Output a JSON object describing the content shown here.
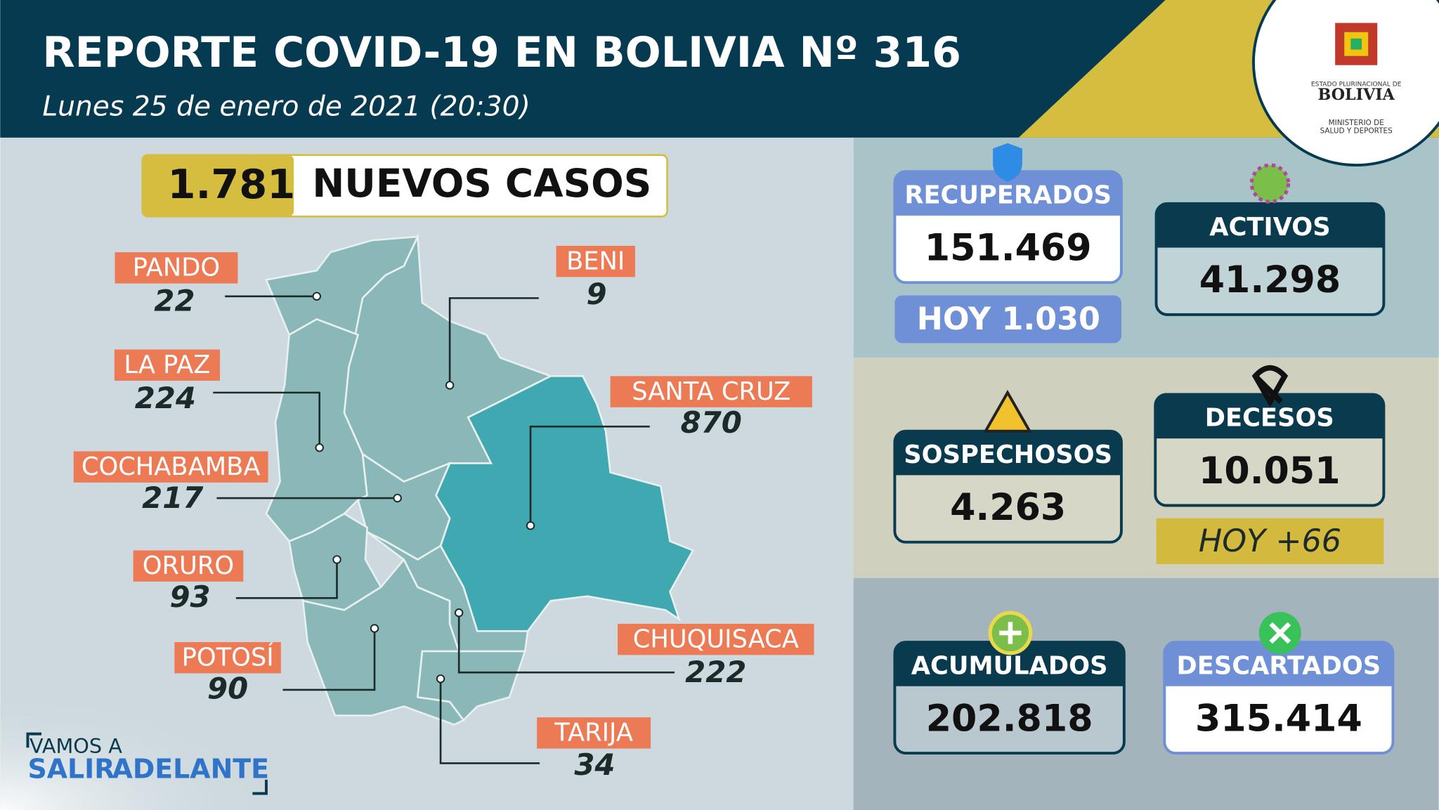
{
  "header": {
    "title": "REPORTE COVID-19 EN BOLIVIA Nº 316",
    "subtitle": "Lunes 25 de enero de 2021 (20:30)"
  },
  "logo": {
    "top": "ESTADO PLURINACIONAL DE",
    "name": "BOLIVIA",
    "ministry_1": "MINISTERIO DE",
    "ministry_2": "SALUD Y DEPORTES"
  },
  "new_cases": {
    "value": "1.781",
    "label": "NUEVOS CASOS"
  },
  "departments": [
    {
      "name": "PANDO",
      "cases": "22"
    },
    {
      "name": "BENI",
      "cases": "9"
    },
    {
      "name": "LA PAZ",
      "cases": "224"
    },
    {
      "name": "SANTA CRUZ",
      "cases": "870"
    },
    {
      "name": "COCHABAMBA",
      "cases": "217"
    },
    {
      "name": "ORURO",
      "cases": "93"
    },
    {
      "name": "CHUQUISACA",
      "cases": "222"
    },
    {
      "name": "POTOSÍ",
      "cases": "90"
    },
    {
      "name": "TARIJA",
      "cases": "34"
    }
  ],
  "stats": {
    "recuperados": {
      "label": "RECUPERADOS",
      "value": "151.469",
      "today": "HOY 1.030"
    },
    "activos": {
      "label": "ACTIVOS",
      "value": "41.298"
    },
    "sospechosos": {
      "label": "SOSPECHOSOS",
      "value": "4.263"
    },
    "decesos": {
      "label": "DECESOS",
      "value": "10.051",
      "today": "HOY +66"
    },
    "acumulados": {
      "label": "ACUMULADOS",
      "value": "202.818"
    },
    "descartados": {
      "label": "DESCARTADOS",
      "value": "315.414"
    }
  },
  "slogan": {
    "line_1": "VAMOS A",
    "line_2a": "SALIR",
    "line_2b": "ADELANTE"
  }
}
